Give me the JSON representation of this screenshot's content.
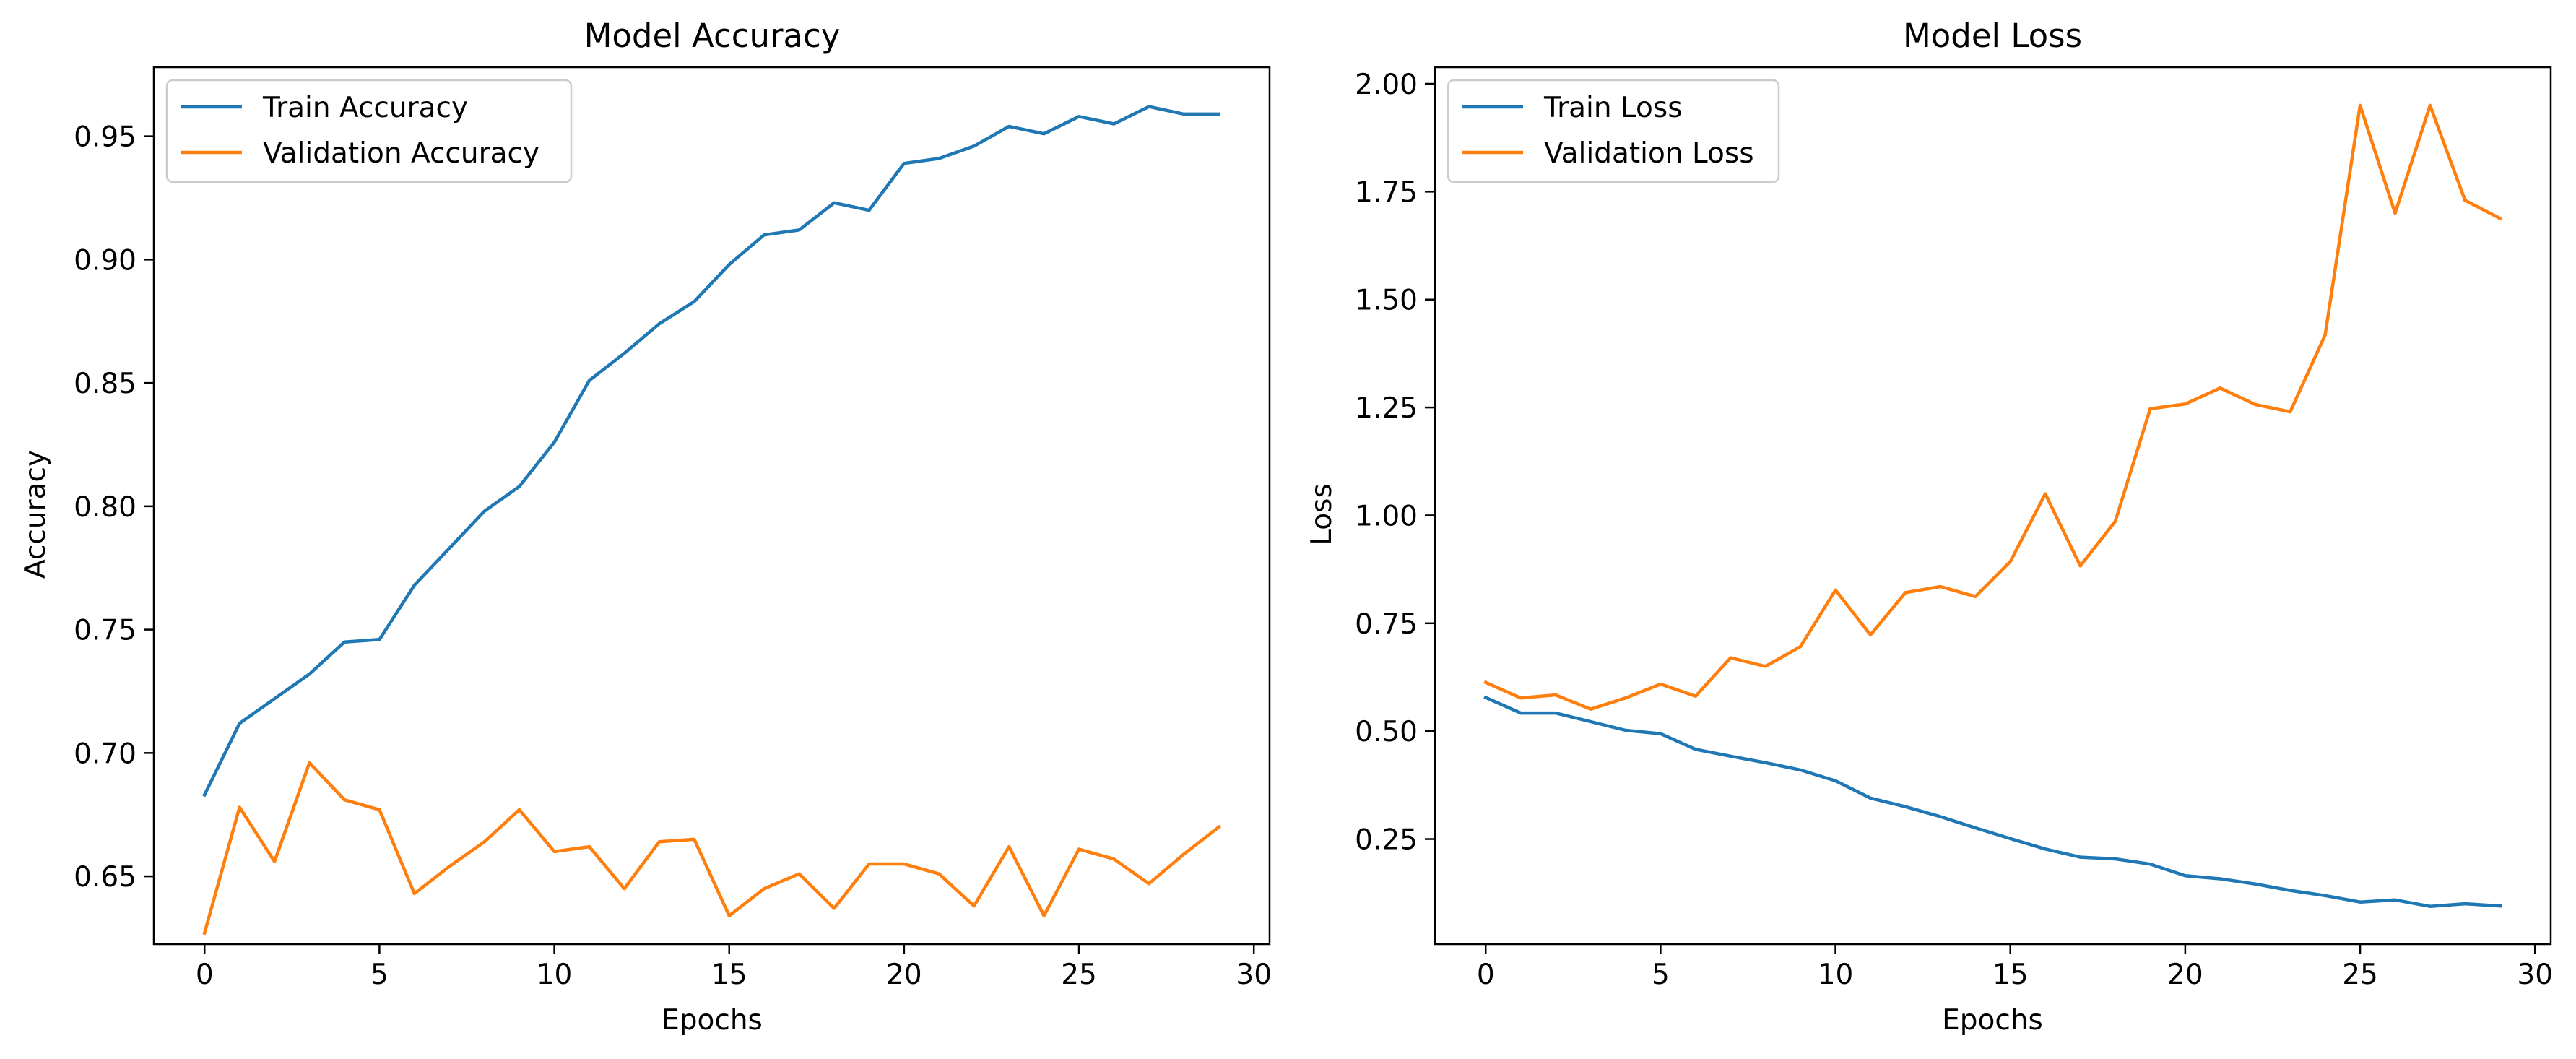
{
  "colors": {
    "train": "#1f77b4",
    "validation": "#ff7f0e"
  },
  "chart_data": [
    {
      "type": "line",
      "title": "Model Accuracy",
      "xlabel": "Epochs",
      "ylabel": "Accuracy",
      "xlim": [
        -1.45,
        30.45
      ],
      "ylim": [
        0.6225,
        0.978
      ],
      "xticks": [
        0,
        5,
        10,
        15,
        20,
        25,
        30
      ],
      "yticks": [
        0.65,
        0.7,
        0.75,
        0.8,
        0.85,
        0.9,
        0.95
      ],
      "ytick_labels": [
        "0.65",
        "0.70",
        "0.75",
        "0.80",
        "0.85",
        "0.90",
        "0.95"
      ],
      "grid": false,
      "legend_position": "upper-left",
      "x": [
        0,
        1,
        2,
        3,
        4,
        5,
        6,
        7,
        8,
        9,
        10,
        11,
        12,
        13,
        14,
        15,
        16,
        17,
        18,
        19,
        20,
        21,
        22,
        23,
        24,
        25,
        26,
        27,
        28,
        29
      ],
      "series": [
        {
          "name": "Train Accuracy",
          "color": "#1f77b4",
          "values": [
            0.683,
            0.712,
            0.722,
            0.732,
            0.745,
            0.746,
            0.768,
            0.783,
            0.798,
            0.808,
            0.826,
            0.851,
            0.862,
            0.874,
            0.883,
            0.898,
            0.91,
            0.912,
            0.923,
            0.92,
            0.939,
            0.941,
            0.946,
            0.954,
            0.951,
            0.958,
            0.955,
            0.962,
            0.959,
            0.959
          ]
        },
        {
          "name": "Validation Accuracy",
          "color": "#ff7f0e",
          "values": [
            0.627,
            0.678,
            0.656,
            0.696,
            0.681,
            0.677,
            0.643,
            0.654,
            0.664,
            0.677,
            0.66,
            0.662,
            0.645,
            0.664,
            0.665,
            0.634,
            0.645,
            0.651,
            0.637,
            0.655,
            0.655,
            0.651,
            0.638,
            0.662,
            0.634,
            0.661,
            0.657,
            0.647,
            0.659,
            0.67
          ]
        }
      ]
    },
    {
      "type": "line",
      "title": "Model Loss",
      "xlabel": "Epochs",
      "ylabel": "Loss",
      "xlim": [
        -1.45,
        30.45
      ],
      "ylim": [
        0.0065,
        2.0385
      ],
      "xticks": [
        0,
        5,
        10,
        15,
        20,
        25,
        30
      ],
      "yticks": [
        0.25,
        0.5,
        0.75,
        1.0,
        1.25,
        1.5,
        1.75,
        2.0
      ],
      "ytick_labels": [
        "0.25",
        "0.50",
        "0.75",
        "1.00",
        "1.25",
        "1.50",
        "1.75",
        "2.00"
      ],
      "grid": false,
      "legend_position": "upper-left",
      "x": [
        0,
        1,
        2,
        3,
        4,
        5,
        6,
        7,
        8,
        9,
        10,
        11,
        12,
        13,
        14,
        15,
        16,
        17,
        18,
        19,
        20,
        21,
        22,
        23,
        24,
        25,
        26,
        27,
        28,
        29
      ],
      "series": [
        {
          "name": "Train Loss",
          "color": "#1f77b4",
          "values": [
            0.578,
            0.542,
            0.542,
            0.522,
            0.502,
            0.494,
            0.458,
            0.442,
            0.427,
            0.41,
            0.385,
            0.345,
            0.325,
            0.302,
            0.276,
            0.251,
            0.227,
            0.208,
            0.204,
            0.192,
            0.165,
            0.158,
            0.146,
            0.131,
            0.119,
            0.104,
            0.109,
            0.094,
            0.1,
            0.095
          ]
        },
        {
          "name": "Validation Loss",
          "color": "#ff7f0e",
          "values": [
            0.613,
            0.577,
            0.584,
            0.551,
            0.577,
            0.609,
            0.581,
            0.67,
            0.65,
            0.696,
            0.827,
            0.723,
            0.821,
            0.835,
            0.812,
            0.893,
            1.05,
            0.883,
            0.986,
            1.247,
            1.258,
            1.295,
            1.257,
            1.24,
            1.418,
            1.95,
            1.7,
            1.95,
            1.73,
            1.688
          ]
        }
      ]
    }
  ]
}
